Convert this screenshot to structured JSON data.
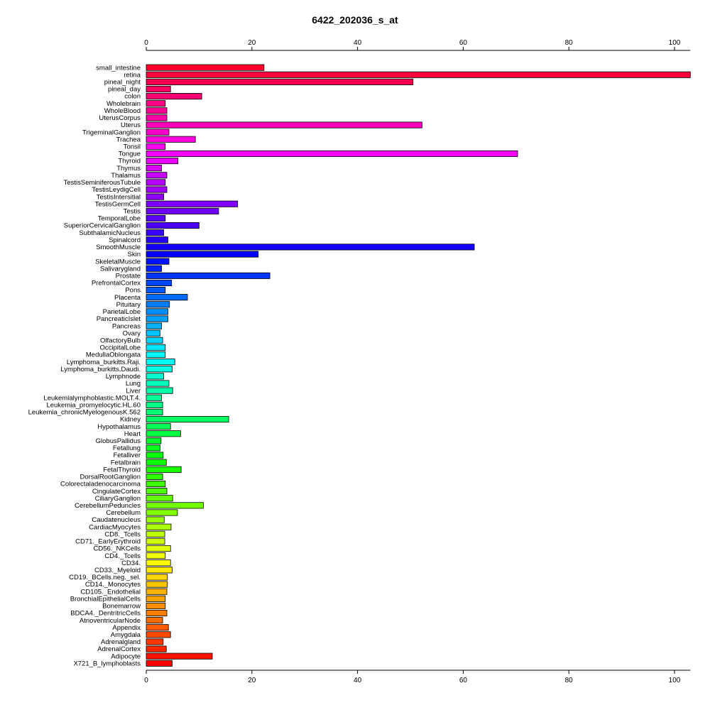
{
  "chart_data": {
    "type": "bar",
    "orientation": "horizontal",
    "title": "6422_202036_s_at",
    "xlabel": "",
    "ylabel": "",
    "xlim": [
      0,
      103
    ],
    "x_ticks": [
      0,
      20,
      40,
      60,
      80,
      100
    ],
    "axes": [
      "top",
      "bottom"
    ],
    "grid": false,
    "legend": "none",
    "bar_colors": "rainbow gradient (red → magenta → blue → cyan → green → yellow → orange → red) with black outlines",
    "categories": [
      "small_intestine",
      "retina",
      "pineal_night",
      "pineal_day",
      "colon",
      "Wholebrain",
      "WholeBlood",
      "UterusCorpus",
      "Uterus",
      "TrigeminalGanglion",
      "Trachea",
      "Tonsil",
      "Tongue",
      "Thyroid",
      "Thymus",
      "Thalamus",
      "TestisSeminiferousTubule",
      "TestisLeydigCell",
      "TestisIntersitial",
      "TestisGermCell",
      "Testis",
      "TemporalLobe",
      "SuperiorCervicalGanglion",
      "SubthalamicNucleus",
      "Spinalcord",
      "SmoothMuscle",
      "Skin",
      "SkeletalMuscle",
      "Salivarygland",
      "Prostate",
      "PrefrontalCortex",
      "Pons",
      "Placenta",
      "Pituitary",
      "ParietalLobe",
      "PancreaticIslet",
      "Pancreas",
      "Ovary",
      "OlfactoryBulb",
      "OccipitalLobe",
      "MedullaOblongata",
      "Lymphoma_burkitts.Raji.",
      "Lymphoma_burkitts.Daudi.",
      "Lymphnode",
      "Lung",
      "Liver",
      "Leukemialymphoblastic.MOLT.4.",
      "Leukemia_promyelocytic.HL.60",
      "Leukemia_chronicMyelogenousK.562",
      "Kidney",
      "Hypothalamus",
      "Heart",
      "GlobusPallidus",
      "Fetallung",
      "Fetalliver",
      "Fetalbrain",
      "FetalThyroid",
      "DorsalRootGanglion",
      "Colorectaladenocarcinoma",
      "CingulateCortex",
      "CiliaryGanglion",
      "CerebellumPeduncles",
      "Cerebellum",
      "Caudatenucleus",
      "CardiacMyocytes",
      "CD8._Tcells",
      "CD71._EarlyErythroid",
      "CD56._NKCells",
      "CD4._Tcells",
      "CD34.",
      "CD33._Myeloid",
      "CD19._BCells.neg._sel.",
      "CD14._Monocytes",
      "CD105._Endothelial",
      "BronchialEpithelialCells",
      "Bonemarrow",
      "BDCA4._DentritricCells",
      "AtrioventricularNode",
      "Appendix",
      "Amygdala",
      "Adrenalgland",
      "AdrenalCortex",
      "Adipocyte",
      "X721_B_lymphoblasts"
    ],
    "values": [
      22.3,
      103,
      50.5,
      4.6,
      10.5,
      3.6,
      3.9,
      3.9,
      52.2,
      4.3,
      9.3,
      3.6,
      70.3,
      6.0,
      2.9,
      3.9,
      3.6,
      3.9,
      3.3,
      17.3,
      13.7,
      3.6,
      10.0,
      3.3,
      4.1,
      62.1,
      21.2,
      4.3,
      2.9,
      23.4,
      4.8,
      3.6,
      7.8,
      4.4,
      4.1,
      4.1,
      2.9,
      2.6,
      3.1,
      3.6,
      3.6,
      5.4,
      4.9,
      3.3,
      4.3,
      5.0,
      2.9,
      3.1,
      3.1,
      15.6,
      4.6,
      6.5,
      2.8,
      2.6,
      3.2,
      3.8,
      6.6,
      3.1,
      3.6,
      3.9,
      5.0,
      10.8,
      5.9,
      3.4,
      4.7,
      3.5,
      3.5,
      4.6,
      3.6,
      4.6,
      4.9,
      4.0,
      4.0,
      3.9,
      3.6,
      3.6,
      3.9,
      3.1,
      4.2,
      4.6,
      3.2,
      3.8,
      12.5,
      4.9
    ]
  }
}
